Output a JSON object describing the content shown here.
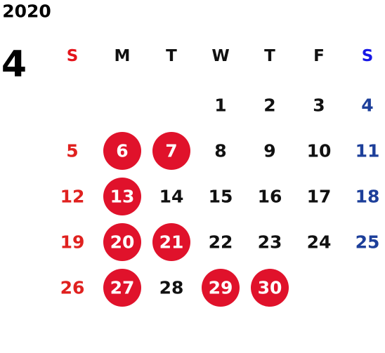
{
  "calendar": {
    "year": "2020",
    "month": "4",
    "weekdays": [
      "S",
      "M",
      "T",
      "W",
      "T",
      "F",
      "S"
    ],
    "weeks": [
      [
        null,
        null,
        null,
        {
          "day": "1"
        },
        {
          "day": "2"
        },
        {
          "day": "3"
        },
        {
          "day": "4"
        }
      ],
      [
        {
          "day": "5"
        },
        {
          "day": "6",
          "circled": true
        },
        {
          "day": "7",
          "circled": true
        },
        {
          "day": "8"
        },
        {
          "day": "9"
        },
        {
          "day": "10"
        },
        {
          "day": "11"
        }
      ],
      [
        {
          "day": "12"
        },
        {
          "day": "13",
          "circled": true
        },
        {
          "day": "14"
        },
        {
          "day": "15"
        },
        {
          "day": "16"
        },
        {
          "day": "17"
        },
        {
          "day": "18"
        }
      ],
      [
        {
          "day": "19"
        },
        {
          "day": "20",
          "circled": true
        },
        {
          "day": "21",
          "circled": true
        },
        {
          "day": "22"
        },
        {
          "day": "23"
        },
        {
          "day": "24"
        },
        {
          "day": "25"
        }
      ],
      [
        {
          "day": "26"
        },
        {
          "day": "27",
          "circled": true
        },
        {
          "day": "28"
        },
        {
          "day": "29",
          "circled": true
        },
        {
          "day": "30",
          "circled": true
        },
        null,
        null
      ]
    ]
  }
}
